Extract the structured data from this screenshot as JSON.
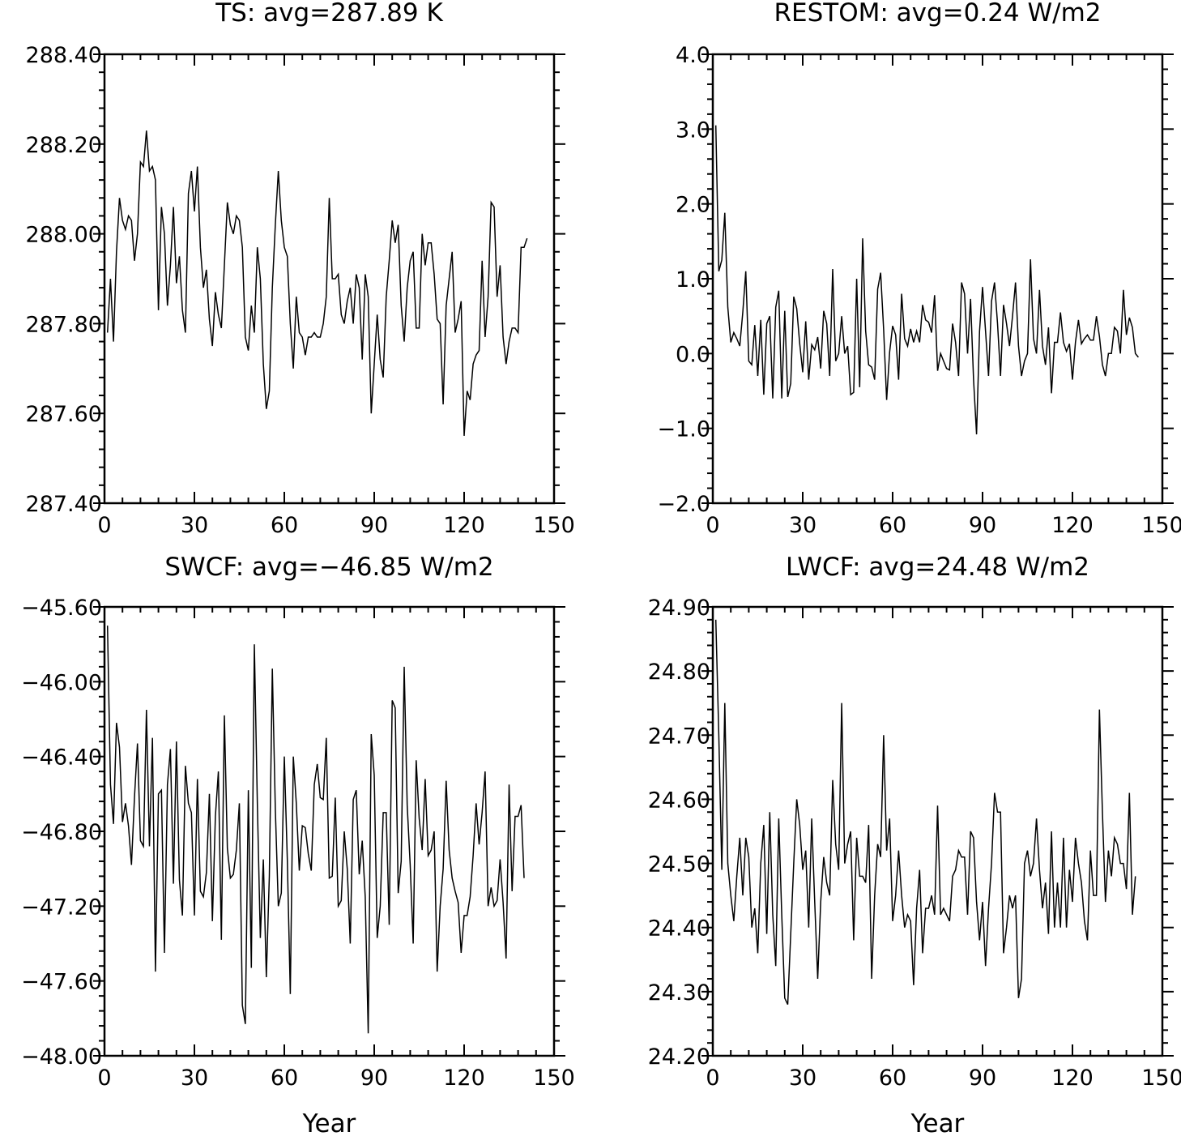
{
  "chart_data": [
    {
      "type": "line",
      "title": "TS: avg=287.89 K",
      "xlabel": "",
      "ylabel": "",
      "xlim": [
        0,
        150
      ],
      "ylim": [
        287.4,
        288.4
      ],
      "xticks": [
        0,
        30,
        60,
        90,
        120,
        150
      ],
      "yticks": [
        287.4,
        287.6,
        287.8,
        288.0,
        288.2,
        288.4
      ],
      "ytick_labels": [
        "287.40",
        "287.60",
        "287.80",
        "288.00",
        "288.20",
        "288.40"
      ],
      "series": [
        {
          "x_start": 1,
          "values": [
            287.78,
            287.9,
            287.76,
            287.96,
            288.08,
            288.03,
            288.01,
            288.04,
            288.03,
            287.94,
            288.0,
            288.16,
            288.15,
            288.23,
            288.14,
            288.15,
            288.12,
            287.83,
            288.06,
            288.0,
            287.84,
            287.93,
            288.06,
            287.89,
            287.95,
            287.83,
            287.78,
            288.09,
            288.14,
            288.05,
            288.15,
            287.97,
            287.88,
            287.92,
            287.81,
            287.75,
            287.87,
            287.82,
            287.79,
            287.93,
            288.07,
            288.02,
            288.0,
            288.04,
            288.03,
            287.97,
            287.77,
            287.74,
            287.84,
            287.78,
            287.97,
            287.9,
            287.71,
            287.61,
            287.65,
            287.88,
            288.02,
            288.14,
            288.03,
            287.97,
            287.95,
            287.8,
            287.7,
            287.86,
            287.78,
            287.77,
            287.73,
            287.77,
            287.77,
            287.78,
            287.77,
            287.77,
            287.8,
            287.86,
            288.08,
            287.9,
            287.9,
            287.91,
            287.82,
            287.8,
            287.85,
            287.88,
            287.8,
            287.91,
            287.88,
            287.72,
            287.91,
            287.86,
            287.6,
            287.71,
            287.82,
            287.72,
            287.68,
            287.86,
            287.94,
            288.03,
            287.98,
            288.02,
            287.84,
            287.76,
            287.88,
            287.94,
            287.96,
            287.79,
            287.79,
            288.0,
            287.93,
            287.98,
            287.98,
            287.91,
            287.81,
            287.8,
            287.62,
            287.84,
            287.9,
            287.96,
            287.78,
            287.81,
            287.85,
            287.55,
            287.65,
            287.63,
            287.71,
            287.73,
            287.74,
            287.94,
            287.77,
            287.86,
            288.07,
            288.06,
            287.86,
            287.93,
            287.77,
            287.71,
            287.76,
            287.79,
            287.79,
            287.78,
            287.97,
            287.97,
            287.99
          ]
        }
      ]
    },
    {
      "type": "line",
      "title": "RESTOM: avg=0.24 W/m2",
      "xlabel": "",
      "ylabel": "",
      "xlim": [
        0,
        150
      ],
      "ylim": [
        -2.0,
        4.0
      ],
      "xticks": [
        0,
        30,
        60,
        90,
        120,
        150
      ],
      "yticks": [
        -2.0,
        -1.0,
        0.0,
        1.0,
        2.0,
        3.0,
        4.0
      ],
      "ytick_labels": [
        "−2.0",
        "−1.0",
        "0.0",
        "1.0",
        "2.0",
        "3.0",
        "4.0"
      ],
      "series": [
        {
          "x_start": 1,
          "values": [
            3.05,
            1.1,
            1.25,
            1.88,
            0.62,
            0.15,
            0.28,
            0.2,
            0.1,
            0.55,
            1.1,
            -0.1,
            -0.15,
            0.38,
            -0.3,
            0.45,
            -0.55,
            0.4,
            0.5,
            -0.6,
            0.62,
            0.84,
            -0.6,
            0.57,
            -0.58,
            -0.4,
            0.76,
            0.6,
            0.13,
            -0.25,
            0.43,
            -0.35,
            0.12,
            0.05,
            0.22,
            -0.2,
            0.57,
            0.4,
            -0.3,
            1.13,
            -0.1,
            0.0,
            0.5,
            0.0,
            0.1,
            -0.55,
            -0.52,
            1.0,
            -0.45,
            1.54,
            0.3,
            -0.15,
            -0.18,
            -0.35,
            0.86,
            1.08,
            0.32,
            -0.62,
            0.02,
            0.37,
            0.25,
            -0.35,
            0.8,
            0.2,
            0.1,
            0.33,
            0.15,
            0.3,
            0.15,
            0.65,
            0.45,
            0.42,
            0.28,
            0.78,
            -0.23,
            0.0,
            -0.1,
            -0.2,
            -0.22,
            0.4,
            0.15,
            -0.3,
            0.95,
            0.8,
            0.0,
            0.73,
            -0.35,
            -1.08,
            0.3,
            0.89,
            0.3,
            -0.3,
            0.7,
            0.95,
            0.4,
            -0.3,
            0.65,
            0.4,
            0.1,
            0.5,
            0.95,
            0.1,
            -0.3,
            -0.1,
            0.0,
            1.26,
            0.2,
            0.0,
            0.85,
            0.1,
            -0.15,
            0.35,
            -0.53,
            0.15,
            0.15,
            0.55,
            0.15,
            0.03,
            0.13,
            -0.35,
            0.15,
            0.45,
            0.13,
            0.2,
            0.25,
            0.18,
            0.18,
            0.5,
            0.23,
            -0.15,
            -0.3,
            0.0,
            0.0,
            0.35,
            0.3,
            0.0,
            0.85,
            0.25,
            0.48,
            0.35,
            0.0,
            -0.05
          ]
        }
      ]
    },
    {
      "type": "line",
      "title": "SWCF: avg=−46.85 W/m2",
      "xlabel": "Year",
      "ylabel": "",
      "xlim": [
        0,
        150
      ],
      "ylim": [
        -48.0,
        -45.6
      ],
      "xticks": [
        0,
        30,
        60,
        90,
        120,
        150
      ],
      "yticks": [
        -48.0,
        -47.6,
        -47.2,
        -46.8,
        -46.4,
        -46.0,
        -45.6
      ],
      "ytick_labels": [
        "−48.00",
        "−47.60",
        "−47.20",
        "−46.80",
        "−46.40",
        "−46.00",
        "−45.60"
      ],
      "series": [
        {
          "x_start": 1,
          "values": [
            -45.7,
            -46.55,
            -46.76,
            -46.22,
            -46.35,
            -46.75,
            -46.65,
            -46.77,
            -46.98,
            -46.62,
            -46.33,
            -46.85,
            -46.88,
            -46.15,
            -46.88,
            -46.3,
            -47.55,
            -46.6,
            -46.58,
            -47.45,
            -46.55,
            -46.36,
            -47.08,
            -46.32,
            -47.06,
            -47.25,
            -46.45,
            -46.65,
            -46.7,
            -47.25,
            -46.52,
            -47.12,
            -47.15,
            -47.02,
            -46.6,
            -47.28,
            -46.72,
            -46.48,
            -47.38,
            -46.18,
            -46.89,
            -47.05,
            -47.03,
            -46.9,
            -46.65,
            -47.73,
            -47.83,
            -46.58,
            -47.53,
            -45.8,
            -46.65,
            -47.37,
            -46.95,
            -47.58,
            -47.04,
            -45.93,
            -46.68,
            -47.2,
            -47.13,
            -46.4,
            -46.95,
            -47.67,
            -46.4,
            -46.65,
            -47.01,
            -46.77,
            -46.78,
            -46.92,
            -47.01,
            -46.55,
            -46.44,
            -46.62,
            -46.63,
            -46.3,
            -47.05,
            -47.04,
            -46.62,
            -47.2,
            -47.17,
            -46.8,
            -47.0,
            -47.4,
            -46.63,
            -46.58,
            -47.03,
            -46.85,
            -47.15,
            -47.88,
            -46.28,
            -46.5,
            -47.37,
            -47.2,
            -46.7,
            -46.7,
            -47.3,
            -46.1,
            -46.14,
            -47.13,
            -46.96,
            -45.92,
            -46.66,
            -46.98,
            -47.4,
            -46.42,
            -46.73,
            -46.9,
            -46.52,
            -46.93,
            -46.9,
            -46.8,
            -47.55,
            -47.2,
            -47.0,
            -46.53,
            -46.9,
            -47.05,
            -47.12,
            -47.18,
            -47.45,
            -47.25,
            -47.25,
            -47.15,
            -46.93,
            -46.65,
            -46.87,
            -46.7,
            -46.48,
            -47.2,
            -47.1,
            -47.2,
            -47.17,
            -46.95,
            -47.18,
            -47.48,
            -46.55,
            -47.12,
            -46.72,
            -46.72,
            -46.66,
            -47.05
          ]
        }
      ]
    },
    {
      "type": "line",
      "title": "LWCF: avg=24.48 W/m2",
      "xlabel": "Year",
      "ylabel": "",
      "xlim": [
        0,
        150
      ],
      "ylim": [
        24.2,
        24.9
      ],
      "xticks": [
        0,
        30,
        60,
        90,
        120,
        150
      ],
      "yticks": [
        24.2,
        24.3,
        24.4,
        24.5,
        24.6,
        24.7,
        24.8,
        24.9
      ],
      "ytick_labels": [
        "24.20",
        "24.30",
        "24.40",
        "24.50",
        "24.60",
        "24.70",
        "24.80",
        "24.90"
      ],
      "series": [
        {
          "x_start": 1,
          "values": [
            24.88,
            24.7,
            24.49,
            24.75,
            24.5,
            24.45,
            24.41,
            24.48,
            24.54,
            24.45,
            24.54,
            24.51,
            24.4,
            24.43,
            24.36,
            24.5,
            24.56,
            24.39,
            24.58,
            24.42,
            24.34,
            24.57,
            24.42,
            24.29,
            24.28,
            24.39,
            24.5,
            24.6,
            24.56,
            24.49,
            24.52,
            24.4,
            24.57,
            24.44,
            24.32,
            24.44,
            24.51,
            24.47,
            24.45,
            24.63,
            24.53,
            24.49,
            24.75,
            24.5,
            24.53,
            24.55,
            24.38,
            24.54,
            24.48,
            24.48,
            24.47,
            24.56,
            24.32,
            24.45,
            24.53,
            24.51,
            24.7,
            24.52,
            24.57,
            24.41,
            24.45,
            24.52,
            24.45,
            24.4,
            24.42,
            24.41,
            24.31,
            24.43,
            24.49,
            24.36,
            24.43,
            24.43,
            24.45,
            24.42,
            24.59,
            24.42,
            24.43,
            24.42,
            24.41,
            24.48,
            24.49,
            24.52,
            24.51,
            24.51,
            24.42,
            24.55,
            24.54,
            24.44,
            24.38,
            24.44,
            24.34,
            24.43,
            24.5,
            24.61,
            24.58,
            24.58,
            24.36,
            24.4,
            24.45,
            24.43,
            24.45,
            24.29,
            24.32,
            24.5,
            24.52,
            24.48,
            24.5,
            24.57,
            24.49,
            24.43,
            24.47,
            24.39,
            24.55,
            24.4,
            24.47,
            24.4,
            24.54,
            24.4,
            24.49,
            24.44,
            24.54,
            24.5,
            24.47,
            24.41,
            24.38,
            24.52,
            24.45,
            24.45,
            24.74,
            24.58,
            24.44,
            24.52,
            24.48,
            24.54,
            24.53,
            24.5,
            24.5,
            24.46,
            24.61,
            24.42,
            24.48
          ]
        }
      ]
    }
  ]
}
